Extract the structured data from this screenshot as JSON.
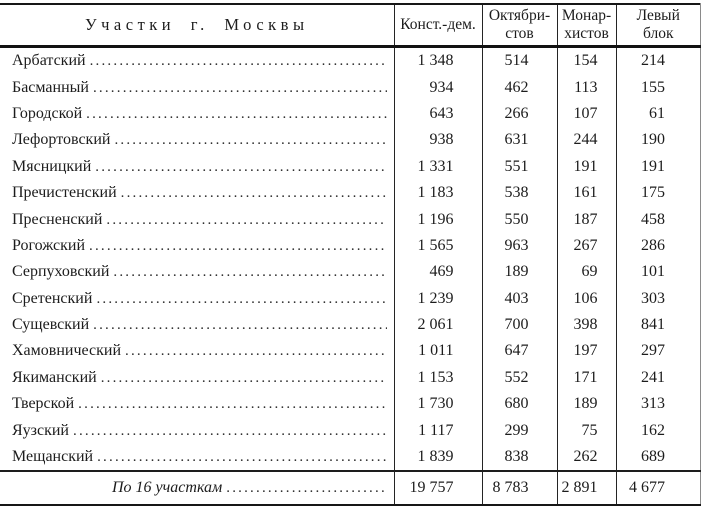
{
  "page": {
    "background_color": "#ffffff",
    "text_color": "#1c1c1c"
  },
  "table": {
    "header": {
      "districts_label": "Участки г. Москвы",
      "columns": [
        {
          "lines": [
            "Конст.-дем."
          ]
        },
        {
          "lines": [
            "Октябри-",
            "стов"
          ]
        },
        {
          "lines": [
            "Монар-",
            "хистов"
          ]
        },
        {
          "lines": [
            "Левый",
            "блок"
          ]
        }
      ]
    },
    "rows": [
      {
        "name": "Арбатский",
        "values": [
          "1 348",
          "514",
          "154",
          "214"
        ]
      },
      {
        "name": "Басманный",
        "values": [
          "934",
          "462",
          "113",
          "155"
        ]
      },
      {
        "name": "Городской",
        "values": [
          "643",
          "266",
          "107",
          "61"
        ]
      },
      {
        "name": "Лефортовский",
        "values": [
          "938",
          "631",
          "244",
          "190"
        ]
      },
      {
        "name": "Мясницкий",
        "values": [
          "1 331",
          "551",
          "191",
          "191"
        ]
      },
      {
        "name": "Пречистенский",
        "values": [
          "1 183",
          "538",
          "161",
          "175"
        ]
      },
      {
        "name": "Пресненский",
        "values": [
          "1 196",
          "550",
          "187",
          "458"
        ]
      },
      {
        "name": "Рогожский",
        "values": [
          "1 565",
          "963",
          "267",
          "286"
        ]
      },
      {
        "name": "Серпуховский",
        "values": [
          "469",
          "189",
          "69",
          "101"
        ]
      },
      {
        "name": "Сретенский",
        "values": [
          "1 239",
          "403",
          "106",
          "303"
        ]
      },
      {
        "name": "Сущевский",
        "values": [
          "2 061",
          "700",
          "398",
          "841"
        ]
      },
      {
        "name": "Хамовнический",
        "values": [
          "1 011",
          "647",
          "197",
          "297"
        ]
      },
      {
        "name": "Якиманский",
        "values": [
          "1 153",
          "552",
          "171",
          "241"
        ]
      },
      {
        "name": "Тверской",
        "values": [
          "1 730",
          "680",
          "189",
          "313"
        ]
      },
      {
        "name": "Яузский",
        "values": [
          "1 117",
          "299",
          "75",
          "162"
        ]
      },
      {
        "name": "Мещанский",
        "values": [
          "1 839",
          "838",
          "262",
          "689"
        ]
      }
    ],
    "footer": {
      "label": "По 16 участкам",
      "values": [
        "19 757",
        "8 783",
        "2 891",
        "4 677"
      ]
    }
  }
}
